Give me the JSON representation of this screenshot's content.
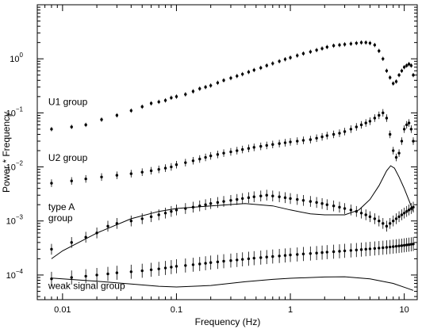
{
  "chart_data": {
    "type": "scatter",
    "title": "",
    "xlabel": "Frequency (Hz)",
    "ylabel": "Power * Frequency",
    "x_scale": "log",
    "y_scale": "log",
    "xlim": [
      0.006,
      13
    ],
    "ylim": [
      3.5e-05,
      10
    ],
    "grid": false,
    "x_ticks": [
      {
        "value": 0.01,
        "label": "0.01"
      },
      {
        "value": 0.1,
        "label": "0.1"
      },
      {
        "value": 1,
        "label": "1"
      },
      {
        "value": 10,
        "label": "10"
      }
    ],
    "y_ticks": [
      {
        "value": 0.0001,
        "mantissa": "10",
        "exponent": "−4"
      },
      {
        "value": 0.001,
        "mantissa": "10",
        "exponent": "−3"
      },
      {
        "value": 0.01,
        "mantissa": "10",
        "exponent": "−2"
      },
      {
        "value": 0.1,
        "mantissa": "10",
        "exponent": "−1"
      },
      {
        "value": 1,
        "mantissa": "10",
        "exponent": "0"
      }
    ],
    "group_labels": [
      {
        "lines": [
          "U1 group"
        ],
        "x": 0.0075,
        "y": 0.14
      },
      {
        "lines": [
          "U2 group"
        ],
        "x": 0.0075,
        "y": 0.013
      },
      {
        "lines": [
          "type A",
          "group"
        ],
        "x": 0.0075,
        "y": 0.0016
      },
      {
        "lines": [
          "weak signal group"
        ],
        "x": 0.0075,
        "y": 5.5e-05
      }
    ],
    "series": [
      {
        "points": [
          [
            0.008,
            0.05
          ],
          [
            0.012,
            0.055
          ],
          [
            0.016,
            0.06
          ],
          [
            0.022,
            0.075
          ],
          [
            0.03,
            0.09
          ],
          [
            0.04,
            0.11
          ],
          [
            0.05,
            0.13
          ],
          [
            0.06,
            0.15
          ],
          [
            0.07,
            0.16
          ],
          [
            0.08,
            0.17
          ],
          [
            0.09,
            0.19
          ],
          [
            0.1,
            0.2
          ],
          [
            0.12,
            0.22
          ],
          [
            0.14,
            0.25
          ],
          [
            0.16,
            0.28
          ],
          [
            0.18,
            0.3
          ],
          [
            0.2,
            0.32
          ],
          [
            0.23,
            0.36
          ],
          [
            0.26,
            0.4
          ],
          [
            0.3,
            0.44
          ],
          [
            0.34,
            0.48
          ],
          [
            0.38,
            0.52
          ],
          [
            0.43,
            0.57
          ],
          [
            0.48,
            0.62
          ],
          [
            0.55,
            0.68
          ],
          [
            0.62,
            0.75
          ],
          [
            0.7,
            0.82
          ],
          [
            0.8,
            0.9
          ],
          [
            0.9,
            0.98
          ],
          [
            1.0,
            1.05
          ],
          [
            1.15,
            1.15
          ],
          [
            1.3,
            1.25
          ],
          [
            1.5,
            1.35
          ],
          [
            1.7,
            1.45
          ],
          [
            1.9,
            1.55
          ],
          [
            2.1,
            1.65
          ],
          [
            2.4,
            1.75
          ],
          [
            2.7,
            1.8
          ],
          [
            3.0,
            1.85
          ],
          [
            3.4,
            1.9
          ],
          [
            3.8,
            1.95
          ],
          [
            4.2,
            2.0
          ],
          [
            4.6,
            2.0
          ],
          [
            5.0,
            1.95
          ],
          [
            5.5,
            1.8
          ],
          [
            6.0,
            1.4
          ],
          [
            6.5,
            1.0
          ],
          [
            7.0,
            0.6
          ],
          [
            7.5,
            0.45
          ],
          [
            8.0,
            0.35
          ],
          [
            8.5,
            0.38
          ],
          [
            9.0,
            0.5
          ],
          [
            9.5,
            0.6
          ],
          [
            10.0,
            0.7
          ],
          [
            10.5,
            0.75
          ],
          [
            11.0,
            0.8
          ],
          [
            11.5,
            0.75
          ],
          [
            12.0,
            0.5
          ]
        ]
      },
      {
        "points": [
          [
            0.008,
            0.005
          ],
          [
            0.012,
            0.0055
          ],
          [
            0.016,
            0.006
          ],
          [
            0.022,
            0.0065
          ],
          [
            0.03,
            0.007
          ],
          [
            0.04,
            0.0075
          ],
          [
            0.05,
            0.008
          ],
          [
            0.06,
            0.0085
          ],
          [
            0.07,
            0.009
          ],
          [
            0.08,
            0.0095
          ],
          [
            0.09,
            0.01
          ],
          [
            0.1,
            0.011
          ],
          [
            0.12,
            0.012
          ],
          [
            0.14,
            0.013
          ],
          [
            0.16,
            0.014
          ],
          [
            0.18,
            0.015
          ],
          [
            0.2,
            0.016
          ],
          [
            0.23,
            0.017
          ],
          [
            0.26,
            0.018
          ],
          [
            0.3,
            0.019
          ],
          [
            0.34,
            0.02
          ],
          [
            0.38,
            0.021
          ],
          [
            0.43,
            0.022
          ],
          [
            0.48,
            0.023
          ],
          [
            0.55,
            0.024
          ],
          [
            0.62,
            0.025
          ],
          [
            0.7,
            0.026
          ],
          [
            0.8,
            0.027
          ],
          [
            0.9,
            0.028
          ],
          [
            1.0,
            0.029
          ],
          [
            1.15,
            0.03
          ],
          [
            1.3,
            0.031
          ],
          [
            1.5,
            0.032
          ],
          [
            1.7,
            0.034
          ],
          [
            1.9,
            0.036
          ],
          [
            2.1,
            0.038
          ],
          [
            2.4,
            0.04
          ],
          [
            2.7,
            0.042
          ],
          [
            3.0,
            0.045
          ],
          [
            3.4,
            0.05
          ],
          [
            3.8,
            0.055
          ],
          [
            4.2,
            0.06
          ],
          [
            4.6,
            0.065
          ],
          [
            5.0,
            0.07
          ],
          [
            5.5,
            0.08
          ],
          [
            6.0,
            0.09
          ],
          [
            6.5,
            0.1
          ],
          [
            7.0,
            0.08
          ],
          [
            7.5,
            0.04
          ],
          [
            8.0,
            0.02
          ],
          [
            8.5,
            0.015
          ],
          [
            9.0,
            0.018
          ],
          [
            9.5,
            0.03
          ],
          [
            10.0,
            0.05
          ],
          [
            10.5,
            0.06
          ],
          [
            11.0,
            0.065
          ],
          [
            11.5,
            0.05
          ],
          [
            12.0,
            0.03
          ]
        ]
      },
      {
        "points": [
          [
            0.008,
            0.0003
          ],
          [
            0.012,
            0.0004
          ],
          [
            0.016,
            0.0005
          ],
          [
            0.02,
            0.0006
          ],
          [
            0.025,
            0.0008
          ],
          [
            0.03,
            0.0009
          ],
          [
            0.04,
            0.001
          ],
          [
            0.05,
            0.0011
          ],
          [
            0.06,
            0.0012
          ],
          [
            0.07,
            0.0013
          ],
          [
            0.08,
            0.0014
          ],
          [
            0.09,
            0.0015
          ],
          [
            0.1,
            0.0016
          ],
          [
            0.12,
            0.0017
          ],
          [
            0.14,
            0.0018
          ],
          [
            0.16,
            0.0019
          ],
          [
            0.18,
            0.002
          ],
          [
            0.2,
            0.0021
          ],
          [
            0.23,
            0.0022
          ],
          [
            0.26,
            0.0023
          ],
          [
            0.3,
            0.0024
          ],
          [
            0.34,
            0.0025
          ],
          [
            0.38,
            0.0026
          ],
          [
            0.43,
            0.0027
          ],
          [
            0.48,
            0.0028
          ],
          [
            0.55,
            0.0029
          ],
          [
            0.62,
            0.003
          ],
          [
            0.7,
            0.0029
          ],
          [
            0.8,
            0.0028
          ],
          [
            0.9,
            0.0027
          ],
          [
            1.0,
            0.0026
          ],
          [
            1.15,
            0.0025
          ],
          [
            1.3,
            0.0024
          ],
          [
            1.5,
            0.0023
          ],
          [
            1.7,
            0.0022
          ],
          [
            1.9,
            0.0021
          ],
          [
            2.1,
            0.002
          ],
          [
            2.4,
            0.0019
          ],
          [
            2.7,
            0.0018
          ],
          [
            3.0,
            0.0017
          ],
          [
            3.4,
            0.0016
          ],
          [
            3.8,
            0.0015
          ],
          [
            4.2,
            0.0014
          ],
          [
            4.6,
            0.0013
          ],
          [
            5.0,
            0.0012
          ],
          [
            5.5,
            0.0011
          ],
          [
            6.0,
            0.001
          ],
          [
            6.5,
            0.0009
          ],
          [
            7.0,
            0.0008
          ],
          [
            7.5,
            0.0009
          ],
          [
            8.0,
            0.001
          ],
          [
            8.5,
            0.0011
          ],
          [
            9.0,
            0.0012
          ],
          [
            9.5,
            0.0013
          ],
          [
            10.0,
            0.0014
          ],
          [
            10.5,
            0.0015
          ],
          [
            11.0,
            0.0016
          ],
          [
            11.5,
            0.0017
          ],
          [
            12.0,
            0.0018
          ]
        ]
      },
      {
        "points": [
          [
            0.008,
            8.5e-05
          ],
          [
            0.012,
            9e-05
          ],
          [
            0.016,
            9.5e-05
          ],
          [
            0.02,
            0.0001
          ],
          [
            0.025,
            0.000105
          ],
          [
            0.03,
            0.00011
          ],
          [
            0.04,
            0.000115
          ],
          [
            0.05,
            0.00012
          ],
          [
            0.06,
            0.000125
          ],
          [
            0.07,
            0.00013
          ],
          [
            0.08,
            0.000135
          ],
          [
            0.09,
            0.00014
          ],
          [
            0.1,
            0.000145
          ],
          [
            0.12,
            0.00015
          ],
          [
            0.14,
            0.000155
          ],
          [
            0.16,
            0.00016
          ],
          [
            0.18,
            0.000165
          ],
          [
            0.2,
            0.00017
          ],
          [
            0.23,
            0.000175
          ],
          [
            0.26,
            0.00018
          ],
          [
            0.3,
            0.000185
          ],
          [
            0.34,
            0.00019
          ],
          [
            0.38,
            0.000195
          ],
          [
            0.43,
            0.0002
          ],
          [
            0.48,
            0.000205
          ],
          [
            0.55,
            0.00021
          ],
          [
            0.62,
            0.000215
          ],
          [
            0.7,
            0.00022
          ],
          [
            0.8,
            0.000225
          ],
          [
            0.9,
            0.00023
          ],
          [
            1.0,
            0.000235
          ],
          [
            1.15,
            0.00024
          ],
          [
            1.3,
            0.000245
          ],
          [
            1.5,
            0.00025
          ],
          [
            1.7,
            0.000255
          ],
          [
            1.9,
            0.00026
          ],
          [
            2.1,
            0.000265
          ],
          [
            2.4,
            0.00027
          ],
          [
            2.7,
            0.000275
          ],
          [
            3.0,
            0.00028
          ],
          [
            3.4,
            0.000285
          ],
          [
            3.8,
            0.00029
          ],
          [
            4.2,
            0.000295
          ],
          [
            4.6,
            0.0003
          ],
          [
            5.0,
            0.000305
          ],
          [
            5.5,
            0.00031
          ],
          [
            6.0,
            0.000315
          ],
          [
            6.5,
            0.00032
          ],
          [
            7.0,
            0.000325
          ],
          [
            7.5,
            0.00033
          ],
          [
            8.0,
            0.000335
          ],
          [
            8.5,
            0.00034
          ],
          [
            9.0,
            0.000345
          ],
          [
            9.5,
            0.00035
          ],
          [
            10.0,
            0.000355
          ],
          [
            10.5,
            0.00036
          ],
          [
            11.0,
            0.000365
          ],
          [
            11.5,
            0.00037
          ],
          [
            12.0,
            0.000375
          ]
        ]
      }
    ],
    "model_curves": [
      {
        "points": [
          [
            0.008,
            0.0002
          ],
          [
            0.01,
            0.00028
          ],
          [
            0.02,
            0.0006
          ],
          [
            0.04,
            0.0011
          ],
          [
            0.07,
            0.0015
          ],
          [
            0.1,
            0.0017
          ],
          [
            0.2,
            0.0019
          ],
          [
            0.4,
            0.0021
          ],
          [
            0.7,
            0.0019
          ],
          [
            1.0,
            0.0016
          ],
          [
            1.5,
            0.00135
          ],
          [
            2.0,
            0.0013
          ],
          [
            3.0,
            0.0013
          ],
          [
            4.0,
            0.0016
          ],
          [
            5.0,
            0.0025
          ],
          [
            6.0,
            0.0045
          ],
          [
            7.0,
            0.0085
          ],
          [
            7.6,
            0.0105
          ],
          [
            8.2,
            0.0095
          ],
          [
            9.0,
            0.0065
          ],
          [
            10.0,
            0.004
          ],
          [
            11.0,
            0.0024
          ],
          [
            12.0,
            0.0015
          ]
        ]
      },
      {
        "points": [
          [
            0.008,
            8.8e-05
          ],
          [
            0.01,
            8.5e-05
          ],
          [
            0.02,
            7.7e-05
          ],
          [
            0.04,
            6.8e-05
          ],
          [
            0.07,
            6.2e-05
          ],
          [
            0.1,
            6e-05
          ],
          [
            0.2,
            6.4e-05
          ],
          [
            0.4,
            7.5e-05
          ],
          [
            0.7,
            8.3e-05
          ],
          [
            1.0,
            8.7e-05
          ],
          [
            2.0,
            9.2e-05
          ],
          [
            3.0,
            9.3e-05
          ],
          [
            5.0,
            8.5e-05
          ],
          [
            8.0,
            7e-05
          ],
          [
            12.0,
            5.2e-05
          ]
        ]
      }
    ]
  }
}
